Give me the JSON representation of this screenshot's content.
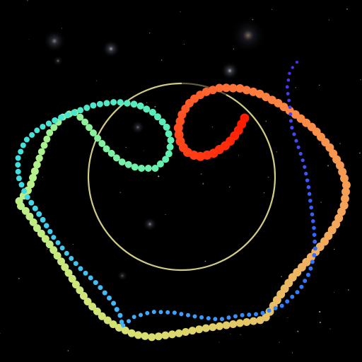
{
  "scene": {
    "background": "#000000",
    "ring_color": "#f4f0a0",
    "glow_color": "#ffffff"
  },
  "trail": {
    "dot_count": 275,
    "gradient_stops": [
      "#ff1a00",
      "#ff8040",
      "#f0b060",
      "#d8e070",
      "#b8f08a",
      "#60f0b0",
      "#40e0e0",
      "#40b0ff",
      "#3070ff",
      "#5030f0"
    ]
  }
}
